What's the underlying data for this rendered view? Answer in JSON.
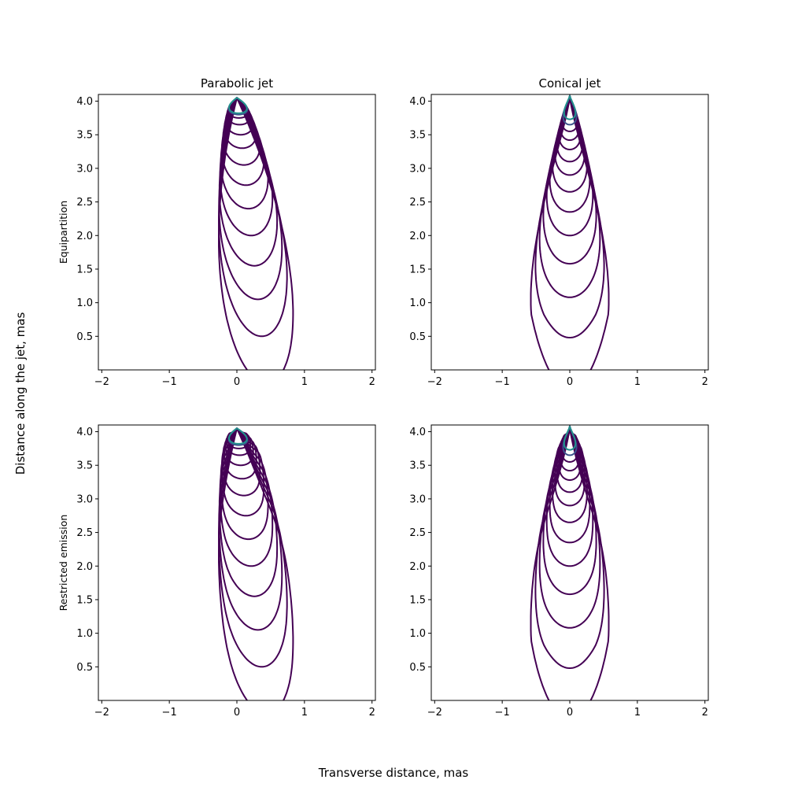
{
  "figure": {
    "xlabel": "Transverse distance, mas",
    "ylabel": "Distance along the jet, mas"
  },
  "colors": {
    "outer_contour": "#440154",
    "mid_contour": "#3b528b",
    "inner_contour": "#21918c",
    "frame": "#000000"
  },
  "chart_data": [
    {
      "type": "contour",
      "title": "Parabolic jet",
      "row_label": "Equipartition",
      "shape": "parabolic",
      "restricted": false,
      "xlim": [
        -2.05,
        2.05
      ],
      "ylim": [
        0.0,
        4.1
      ],
      "xticks": [
        -2,
        -1,
        0,
        1,
        2
      ],
      "xtick_labels": [
        "−2",
        "−1",
        "0",
        "1",
        "2"
      ],
      "yticks": [
        0.5,
        1.0,
        1.5,
        2.0,
        2.5,
        3.0,
        3.5,
        4.0
      ],
      "ytick_labels": [
        "0.5",
        "1.0",
        "1.5",
        "2.0",
        "2.5",
        "3.0",
        "3.5",
        "4.0"
      ],
      "apex": 4.05,
      "contour_levels": [
        -0.2,
        0.5,
        1.05,
        1.55,
        2.0,
        2.4,
        2.75,
        3.05,
        3.3,
        3.5,
        3.65,
        3.75,
        3.8,
        3.82
      ]
    },
    {
      "type": "contour",
      "title": "Conical jet",
      "row_label": "",
      "shape": "conical",
      "restricted": false,
      "xlim": [
        -2.05,
        2.05
      ],
      "ylim": [
        0.0,
        4.1
      ],
      "xticks": [
        -2,
        -1,
        0,
        1,
        2
      ],
      "xtick_labels": [
        "−2",
        "−1",
        "0",
        "1",
        "2"
      ],
      "yticks": [
        0.5,
        1.0,
        1.5,
        2.0,
        2.5,
        3.0,
        3.5,
        4.0
      ],
      "ytick_labels": [
        "0.5",
        "1.0",
        "1.5",
        "2.0",
        "2.5",
        "3.0",
        "3.5",
        "4.0"
      ],
      "apex": 4.08,
      "contour_levels": [
        -0.3,
        0.48,
        1.08,
        1.58,
        2.0,
        2.35,
        2.65,
        2.9,
        3.1,
        3.28,
        3.42,
        3.55,
        3.65,
        3.73
      ]
    },
    {
      "type": "contour",
      "title": "",
      "row_label": "Restricted emission",
      "shape": "parabolic",
      "restricted": true,
      "xlim": [
        -2.05,
        2.05
      ],
      "ylim": [
        0.0,
        4.1
      ],
      "xticks": [
        -2,
        -1,
        0,
        1,
        2
      ],
      "xtick_labels": [
        "−2",
        "−1",
        "0",
        "1",
        "2"
      ],
      "yticks": [
        0.5,
        1.0,
        1.5,
        2.0,
        2.5,
        3.0,
        3.5,
        4.0
      ],
      "ytick_labels": [
        "0.5",
        "1.0",
        "1.5",
        "2.0",
        "2.5",
        "3.0",
        "3.5",
        "4.0"
      ],
      "apex": 4.05,
      "contour_levels": [
        -0.2,
        0.5,
        1.05,
        1.55,
        2.0,
        2.4,
        2.75,
        3.05,
        3.3,
        3.5,
        3.65,
        3.75,
        3.8,
        3.82
      ]
    },
    {
      "type": "contour",
      "title": "",
      "row_label": "",
      "shape": "conical",
      "restricted": true,
      "xlim": [
        -2.05,
        2.05
      ],
      "ylim": [
        0.0,
        4.1
      ],
      "xticks": [
        -2,
        -1,
        0,
        1,
        2
      ],
      "xtick_labels": [
        "−2",
        "−1",
        "0",
        "1",
        "2"
      ],
      "yticks": [
        0.5,
        1.0,
        1.5,
        2.0,
        2.5,
        3.0,
        3.5,
        4.0
      ],
      "ytick_labels": [
        "0.5",
        "1.0",
        "1.5",
        "2.0",
        "2.5",
        "3.0",
        "3.5",
        "4.0"
      ],
      "apex": 4.08,
      "contour_levels": [
        -0.3,
        0.48,
        1.08,
        1.58,
        2.0,
        2.35,
        2.65,
        2.9,
        3.1,
        3.28,
        3.42,
        3.55,
        3.65,
        3.73
      ]
    }
  ]
}
